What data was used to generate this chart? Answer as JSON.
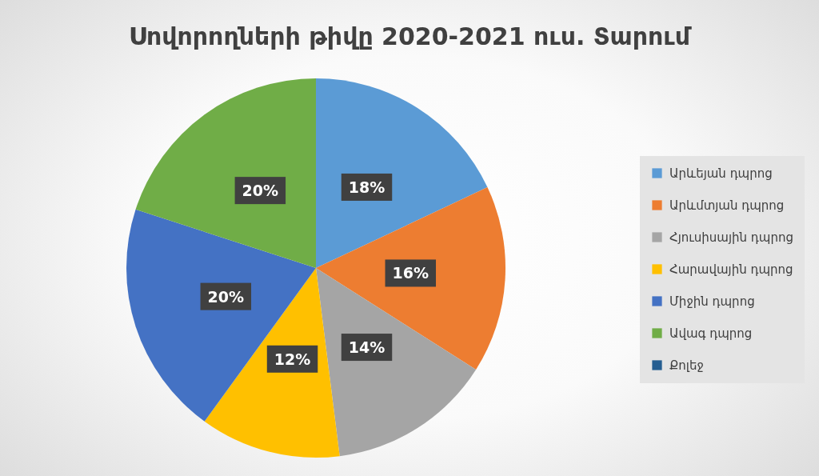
{
  "chart_data": {
    "type": "pie",
    "title": "Սովորողների թիվը 2020-2021 ուս. Տարում",
    "categories": [
      "Արևեյան դպրոց",
      "Արևմտյան դպրոց",
      "Հյուսիսային դպրոց",
      "Հարավային դպրոց",
      "Միջին դպրոց",
      "Ավագ դպրոց",
      "Քոլեջ"
    ],
    "values": [
      18,
      16,
      14,
      12,
      20,
      20,
      0
    ],
    "colors": [
      "#5b9bd5",
      "#ed7d31",
      "#a5a5a5",
      "#ffc000",
      "#4472c4",
      "#70ad47",
      "#255e91"
    ],
    "value_labels": [
      "18%",
      "16%",
      "14%",
      "12%",
      "20%",
      "20%",
      null
    ],
    "legend": "right"
  }
}
